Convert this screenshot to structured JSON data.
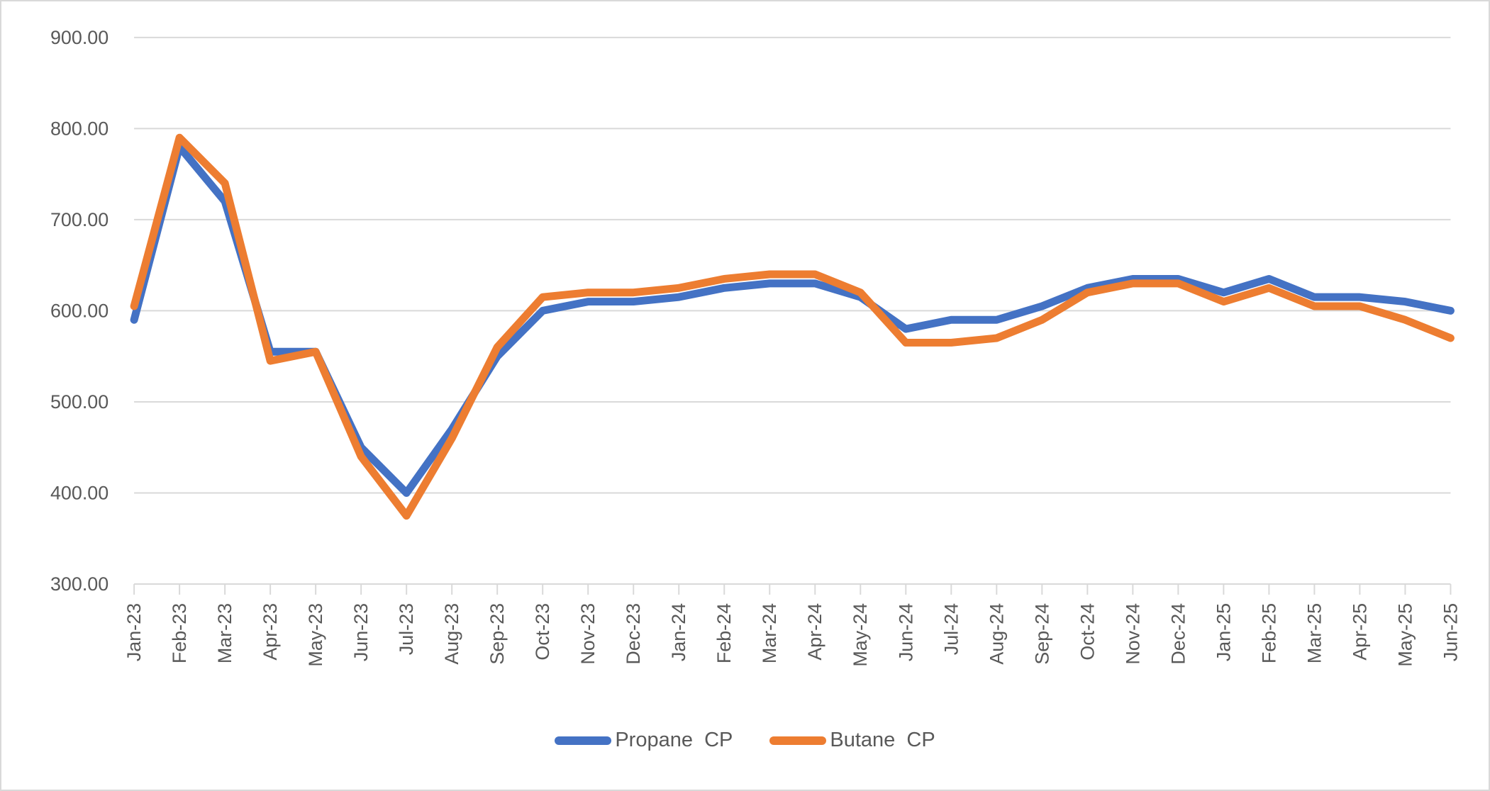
{
  "chart_data": {
    "type": "line",
    "title": "",
    "xlabel": "",
    "ylabel": "",
    "categories": [
      "Jan-23",
      "Feb-23",
      "Mar-23",
      "Apr-23",
      "May-23",
      "Jun-23",
      "Jul-23",
      "Aug-23",
      "Sep-23",
      "Oct-23",
      "Nov-23",
      "Dec-23",
      "Jan-24",
      "Feb-24",
      "Mar-24",
      "Apr-24",
      "May-24",
      "Jun-24",
      "Jul-24",
      "Aug-24",
      "Sep-24",
      "Oct-24",
      "Nov-24",
      "Dec-24",
      "Jan-25",
      "Feb-25",
      "Mar-25",
      "Apr-25",
      "May-25",
      "Jun-25"
    ],
    "series": [
      {
        "name": "Propane  CP",
        "color": "#4472C4",
        "values": [
          590,
          780,
          720,
          555,
          555,
          450,
          400,
          470,
          550,
          600,
          610,
          610,
          615,
          625,
          630,
          630,
          615,
          580,
          590,
          590,
          605,
          625,
          635,
          635,
          620,
          635,
          615,
          615,
          610,
          600
        ]
      },
      {
        "name": "Butane  CP",
        "color": "#ED7D31",
        "values": [
          605,
          790,
          740,
          545,
          555,
          440,
          375,
          460,
          560,
          615,
          620,
          620,
          625,
          635,
          640,
          640,
          620,
          565,
          565,
          570,
          590,
          620,
          630,
          630,
          610,
          625,
          605,
          605,
          590,
          570
        ]
      }
    ],
    "ylim": [
      300,
      900
    ],
    "y_tick_labels": [
      "300.00",
      "400.00",
      "500.00",
      "600.00",
      "700.00",
      "800.00",
      "900.00"
    ],
    "grid": true,
    "legend_position": "bottom"
  },
  "style": {
    "grid_color": "#D9D9D9",
    "axis_text_color": "#595959",
    "background": "#FFFFFF",
    "border_color": "#D9D9D9"
  }
}
